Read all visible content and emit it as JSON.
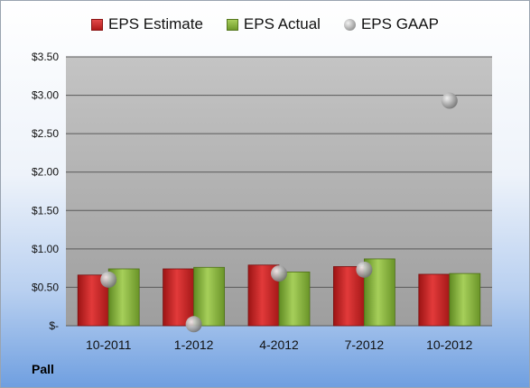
{
  "footer": {
    "company": "Pall"
  },
  "legend": {
    "estimate": "EPS Estimate",
    "actual": "EPS Actual",
    "gaap": "EPS GAAP"
  },
  "colors": {
    "estimate": "#c81e1e",
    "actual": "#86b03c",
    "gaap": "#a8a8a8"
  },
  "chart_data": {
    "type": "bar",
    "categories": [
      "10-2011",
      "1-2012",
      "4-2012",
      "7-2012",
      "10-2012"
    ],
    "series": [
      {
        "name": "EPS Estimate",
        "values": [
          0.66,
          0.74,
          0.79,
          0.77,
          0.67
        ]
      },
      {
        "name": "EPS Actual",
        "values": [
          0.74,
          0.76,
          0.7,
          0.87,
          0.68
        ]
      },
      {
        "name": "EPS GAAP",
        "type": "scatter",
        "values": [
          0.6,
          0.02,
          0.68,
          0.73,
          2.93
        ]
      }
    ],
    "ylim": [
      0,
      3.5
    ],
    "yticks": [
      0,
      0.5,
      1.0,
      1.5,
      2.0,
      2.5,
      3.0,
      3.5
    ],
    "ytick_labels": [
      "$-",
      "$0.50",
      "$1.00",
      "$1.50",
      "$2.00",
      "$2.50",
      "$3.00",
      "$3.50"
    ],
    "grid": true,
    "legend_position": "top"
  }
}
